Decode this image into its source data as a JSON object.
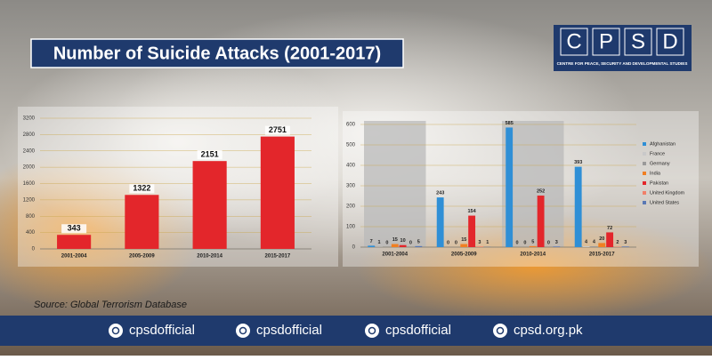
{
  "header": {
    "title": "Number of Suicide Attacks (2001-2017)"
  },
  "logo": {
    "letters": [
      "C",
      "P",
      "S",
      "D"
    ],
    "subtitle": "CENTRE FOR PEACE, SECURITY AND DEVELOPMENTAL STUDIES"
  },
  "chart_data": [
    {
      "type": "bar",
      "categories": [
        "2001-2004",
        "2005-2009",
        "2010-2014",
        "2015-2017"
      ],
      "values": [
        343,
        1322,
        2151,
        2751
      ],
      "color": "#e3262b",
      "ylim": [
        0,
        3200
      ],
      "yticks": [
        0,
        400,
        800,
        1200,
        1600,
        2000,
        2400,
        2800,
        3200
      ],
      "grid": true
    },
    {
      "type": "bar",
      "categories": [
        "2001-2004",
        "2005-2009",
        "2010-2014",
        "2015-2017"
      ],
      "series": [
        {
          "name": "Afghanistan",
          "color": "#2f8fd6",
          "values": [
            7,
            243,
            585,
            393
          ]
        },
        {
          "name": "France",
          "color": "#c9c9c9",
          "values": [
            1,
            0,
            0,
            4
          ]
        },
        {
          "name": "Germany",
          "color": "#9a9a9a",
          "values": [
            0,
            0,
            0,
            4
          ]
        },
        {
          "name": "India",
          "color": "#f07f22",
          "values": [
            15,
            15,
            5,
            20
          ]
        },
        {
          "name": "Pakistan",
          "color": "#e3262b",
          "values": [
            10,
            154,
            252,
            72
          ]
        },
        {
          "name": "United Kingdom",
          "color": "#f0806a",
          "values": [
            0,
            3,
            0,
            2
          ]
        },
        {
          "name": "United States",
          "color": "#5a78b4",
          "values": [
            5,
            1,
            3,
            3
          ]
        }
      ],
      "ylim": [
        0,
        600
      ],
      "yticks": [
        0,
        100,
        200,
        300,
        400,
        500,
        600
      ],
      "grid": true,
      "legend": "right"
    }
  ],
  "source": "Source: Global Terrorism Database",
  "footer": {
    "items": [
      "cpsdofficial",
      "cpsdofficial",
      "cpsdofficial",
      "cpsd.org.pk"
    ]
  }
}
